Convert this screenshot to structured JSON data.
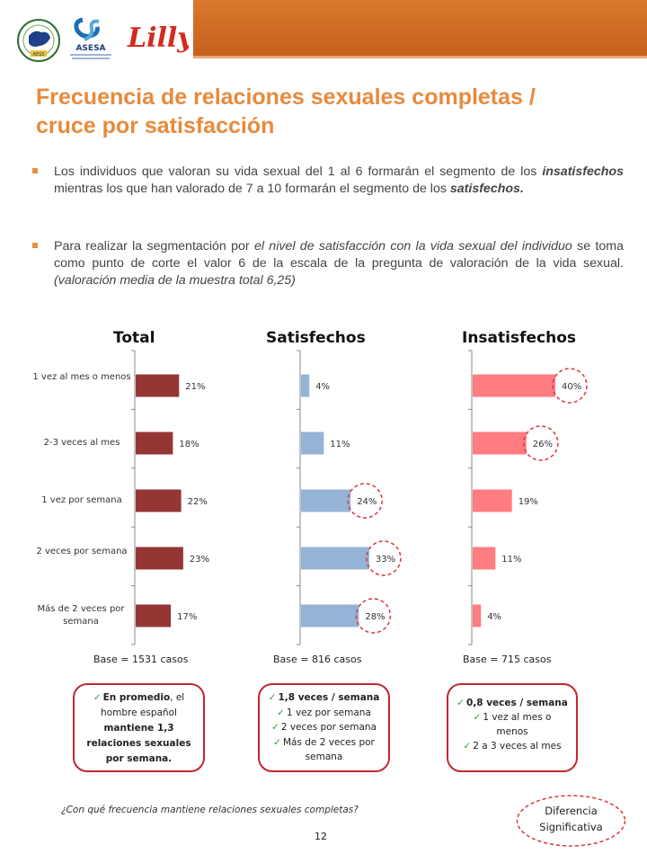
{
  "header": {
    "colors": {
      "bar": "#c5601c",
      "title": "#e88a3c",
      "accent_red": "#c0282d"
    },
    "logos": {
      "aess": "AESS",
      "asesa": "ASESA",
      "lilly": "Lilly"
    }
  },
  "title": {
    "line1": "Frecuencia de relaciones sexuales completas /",
    "line2": "cruce por satisfacción"
  },
  "bullets": {
    "b1": {
      "t1": "Los individuos que valoran su vida sexual del 1 al 6 formarán el segmento de los ",
      "t2": "insatisfechos",
      "t3": " mientras los que han valorado de 7 a 10 formarán el segmento de los ",
      "t4": "satisfechos."
    },
    "b2": {
      "t1": "Para realizar la segmentación por ",
      "t2": "el nivel de satisfacción con la vida sexual del individuo",
      "t3": " se toma como punto de corte el valor 6 de la escala de la pregunta de valoración de la vida sexual. ",
      "t4": "(valoración media de la muestra total 6,25)"
    }
  },
  "chart_data": [
    {
      "type": "bar",
      "orientation": "horizontal",
      "title": "Total",
      "categories": [
        "1 vez al mes o menos",
        "2-3 veces al mes",
        "1 vez por semana",
        "2 veces por semana",
        "Más de 2 veces por semana"
      ],
      "values": [
        21,
        18,
        22,
        23,
        17
      ],
      "labels": [
        "21%",
        "18%",
        "22%",
        "23%",
        "17%"
      ],
      "color": "#943634",
      "highlight": [],
      "base": "Base = 1531 casos"
    },
    {
      "type": "bar",
      "orientation": "horizontal",
      "title": "Satisfechos",
      "categories": [
        "1 vez al mes o menos",
        "2-3 veces al mes",
        "1 vez por semana",
        "2 veces por semana",
        "Más de 2 veces por semana"
      ],
      "values": [
        4,
        11,
        24,
        33,
        28
      ],
      "labels": [
        "4%",
        "11%",
        "24%",
        "33%",
        "28%"
      ],
      "color": "#95b3d7",
      "highlight": [
        2,
        3,
        4
      ],
      "base": "Base = 816 casos"
    },
    {
      "type": "bar",
      "orientation": "horizontal",
      "title": "Insatisfechos",
      "categories": [
        "1 vez al mes o menos",
        "2-3 veces al mes",
        "1 vez por semana",
        "2 veces por semana",
        "Más de 2 veces por semana"
      ],
      "values": [
        40,
        26,
        19,
        11,
        4
      ],
      "labels": [
        "40%",
        "26%",
        "19%",
        "11%",
        "4%"
      ],
      "color": "#ff7c80",
      "highlight": [
        0,
        1
      ],
      "base": "Base = 715 casos"
    }
  ],
  "boxes": {
    "total": {
      "l1a": "En promedio",
      "l1b": ", el",
      "l2": "hombre español",
      "l3": "mantiene 1,3",
      "l4": "relaciones sexuales",
      "l5": "por semana."
    },
    "satisfechos": {
      "l1": "1,8 veces / semana",
      "l2": "1 vez por semana",
      "l3": "2 veces por semana",
      "l4a": "Más de 2 veces por",
      "l4b": "semana"
    },
    "insatisfechos": {
      "l1": "0,8 veces / semana",
      "l2a": "1 vez al mes o",
      "l2b": "menos",
      "l3": "2 a 3 veces al mes"
    },
    "check": "✓"
  },
  "footnote": "¿Con qué frecuencia  mantiene relaciones  sexuales completas?",
  "legend": {
    "line1": "Diferencia",
    "line2": "Significativa"
  },
  "page_number": "12"
}
